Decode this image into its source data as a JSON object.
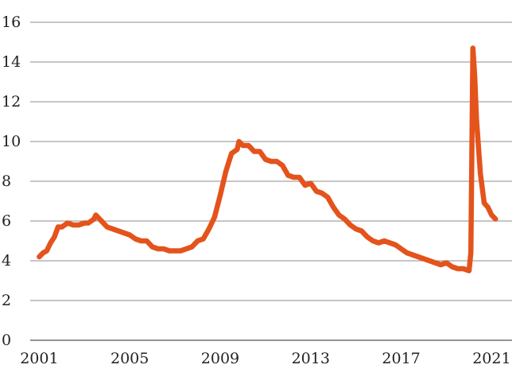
{
  "chart_data": {
    "type": "line",
    "title": "",
    "xlabel": "",
    "ylabel": "",
    "xlim": [
      2000.6,
      2021.9
    ],
    "ylim": [
      0,
      16
    ],
    "yticks": [
      0,
      2,
      4,
      6,
      8,
      10,
      12,
      14,
      16
    ],
    "xticks": [
      2001,
      2005,
      2009,
      2013,
      2017,
      2021
    ],
    "grid": "horizontal",
    "legend": "none",
    "series": [
      {
        "color": "#e4531c",
        "x": [
          2001.0,
          2001.17,
          2001.33,
          2001.5,
          2001.67,
          2001.83,
          2002.0,
          2002.25,
          2002.5,
          2002.75,
          2003.0,
          2003.17,
          2003.42,
          2003.5,
          2003.75,
          2004.0,
          2004.25,
          2004.5,
          2004.75,
          2005.0,
          2005.25,
          2005.5,
          2005.75,
          2006.0,
          2006.25,
          2006.5,
          2006.75,
          2007.0,
          2007.25,
          2007.5,
          2007.75,
          2008.0,
          2008.25,
          2008.5,
          2008.75,
          2009.0,
          2009.25,
          2009.5,
          2009.75,
          2009.83,
          2010.0,
          2010.25,
          2010.5,
          2010.75,
          2011.0,
          2011.25,
          2011.5,
          2011.75,
          2012.0,
          2012.25,
          2012.5,
          2012.75,
          2013.0,
          2013.25,
          2013.5,
          2013.75,
          2014.0,
          2014.25,
          2014.5,
          2014.75,
          2015.0,
          2015.25,
          2015.5,
          2015.75,
          2016.0,
          2016.25,
          2016.5,
          2016.75,
          2017.0,
          2017.25,
          2017.5,
          2017.75,
          2018.0,
          2018.25,
          2018.5,
          2018.75,
          2019.0,
          2019.25,
          2019.5,
          2019.75,
          2020.0,
          2020.08,
          2020.17,
          2020.25,
          2020.33,
          2020.5,
          2020.67,
          2020.83,
          2021.0,
          2021.17
        ],
        "y": [
          4.2,
          4.4,
          4.5,
          4.9,
          5.2,
          5.7,
          5.7,
          5.9,
          5.8,
          5.8,
          5.9,
          5.9,
          6.1,
          6.3,
          6.0,
          5.7,
          5.6,
          5.5,
          5.4,
          5.3,
          5.1,
          5.0,
          5.0,
          4.7,
          4.6,
          4.6,
          4.5,
          4.5,
          4.5,
          4.6,
          4.7,
          5.0,
          5.1,
          5.6,
          6.2,
          7.3,
          8.5,
          9.4,
          9.6,
          10.0,
          9.8,
          9.8,
          9.5,
          9.5,
          9.1,
          9.0,
          9.0,
          8.8,
          8.3,
          8.2,
          8.2,
          7.8,
          7.9,
          7.5,
          7.4,
          7.2,
          6.7,
          6.3,
          6.1,
          5.8,
          5.6,
          5.5,
          5.2,
          5.0,
          4.9,
          5.0,
          4.9,
          4.8,
          4.6,
          4.4,
          4.3,
          4.2,
          4.1,
          4.0,
          3.9,
          3.8,
          3.9,
          3.7,
          3.6,
          3.6,
          3.5,
          4.4,
          14.7,
          13.3,
          11.1,
          8.4,
          6.9,
          6.7,
          6.3,
          6.1
        ]
      }
    ]
  }
}
